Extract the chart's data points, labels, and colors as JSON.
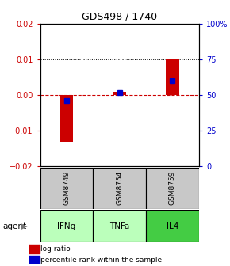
{
  "title": "GDS498 / 1740",
  "samples": [
    "GSM8749",
    "GSM8754",
    "GSM8759"
  ],
  "agents": [
    "IFNg",
    "TNFa",
    "IL4"
  ],
  "log_ratios": [
    -0.013,
    0.001,
    0.01
  ],
  "percentile_ranks": [
    46,
    52,
    60
  ],
  "ylim_left": [
    -0.02,
    0.02
  ],
  "ylim_right": [
    0,
    100
  ],
  "yticks_left": [
    -0.02,
    -0.01,
    0,
    0.01,
    0.02
  ],
  "yticks_right": [
    0,
    25,
    50,
    75,
    100
  ],
  "ytick_labels_right": [
    "0",
    "25",
    "50",
    "75",
    "100%"
  ],
  "bar_color": "#cc0000",
  "dot_color": "#0000cc",
  "zero_line_color": "#cc0000",
  "sample_bg_color": "#c8c8c8",
  "agent_colors": [
    "#bbffbb",
    "#bbffbb",
    "#44cc44"
  ],
  "title_color": "#000000",
  "left_tick_color": "#cc0000",
  "right_tick_color": "#0000cc",
  "legend_log_color": "#cc0000",
  "legend_pct_color": "#0000cc",
  "bar_width": 0.25
}
